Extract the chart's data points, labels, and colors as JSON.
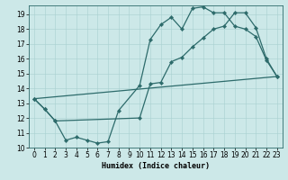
{
  "bg_color": "#cce8e8",
  "line_color": "#2d6b6b",
  "xlim": [
    -0.5,
    23.5
  ],
  "ylim": [
    10,
    19.6
  ],
  "yticks": [
    10,
    11,
    12,
    13,
    14,
    15,
    16,
    17,
    18,
    19
  ],
  "xticks": [
    0,
    1,
    2,
    3,
    4,
    5,
    6,
    7,
    8,
    9,
    10,
    11,
    12,
    13,
    14,
    15,
    16,
    17,
    18,
    19,
    20,
    21,
    22,
    23
  ],
  "xlabel": "Humidex (Indice chaleur)",
  "line1_x": [
    0,
    1,
    2,
    3,
    4,
    5,
    6,
    7,
    8,
    10,
    11,
    12,
    13,
    14,
    15,
    16,
    17,
    18,
    19,
    20,
    21,
    22,
    23
  ],
  "line1_y": [
    13.3,
    12.6,
    11.8,
    10.5,
    10.7,
    10.5,
    10.3,
    10.4,
    12.5,
    14.2,
    17.3,
    18.3,
    18.8,
    18.0,
    19.4,
    19.5,
    19.1,
    19.1,
    18.2,
    18.0,
    17.5,
    15.9,
    14.8
  ],
  "line2_x": [
    0,
    1,
    2,
    10,
    11,
    12,
    13,
    14,
    15,
    16,
    17,
    18,
    19,
    20,
    21,
    22,
    23
  ],
  "line2_y": [
    13.3,
    12.6,
    11.8,
    12.0,
    14.3,
    14.4,
    15.8,
    16.1,
    16.8,
    17.4,
    18.0,
    18.2,
    19.1,
    19.1,
    18.1,
    16.0,
    14.8
  ],
  "line3_x": [
    0,
    23
  ],
  "line3_y": [
    13.3,
    14.8
  ],
  "tick_fontsize": 5.5,
  "xlabel_fontsize": 6.0
}
